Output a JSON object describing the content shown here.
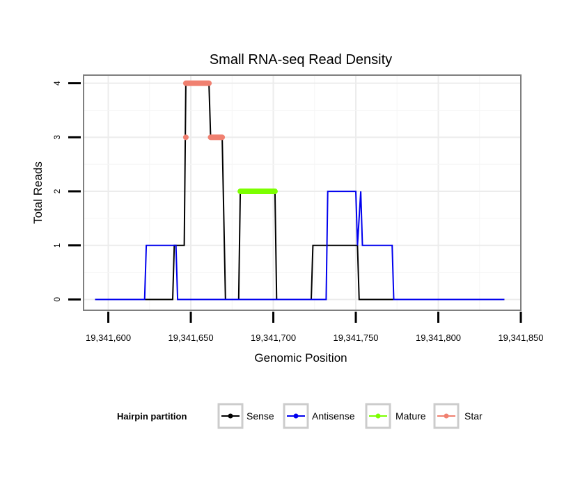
{
  "chart_data": {
    "type": "line",
    "title": "Small RNA-seq Read Density",
    "xlabel": "Genomic Position",
    "ylabel": "Total Reads",
    "xlim": [
      19341585,
      19341850
    ],
    "ylim": [
      -0.2,
      4.15
    ],
    "x_ticks": [
      19341600,
      19341650,
      19341700,
      19341750,
      19341800,
      19341850
    ],
    "x_tick_labels": [
      "19,341,600",
      "19,341,650",
      "19,341,700",
      "19,341,750",
      "19,341,800",
      "19,341,850"
    ],
    "y_ticks": [
      0,
      1,
      2,
      3,
      4
    ],
    "y_tick_labels": [
      "0",
      "1",
      "2",
      "3",
      "4"
    ],
    "grid": true,
    "legend": {
      "title": "Hairpin partition",
      "position": "bottom",
      "entries": [
        "Sense",
        "Antisense",
        "Mature",
        "Star"
      ]
    },
    "series": [
      {
        "name": "Sense",
        "color": "#000000",
        "style": "line",
        "points": [
          [
            19341592,
            0
          ],
          [
            19341639,
            0
          ],
          [
            19341640,
            1
          ],
          [
            19341646,
            1
          ],
          [
            19341647,
            4
          ],
          [
            19341661,
            4
          ],
          [
            19341662,
            3
          ],
          [
            19341669,
            3
          ],
          [
            19341671,
            0
          ],
          [
            19341679,
            0
          ],
          [
            19341680,
            2
          ],
          [
            19341701,
            2
          ],
          [
            19341702,
            0
          ],
          [
            19341723,
            0
          ],
          [
            19341724,
            1
          ],
          [
            19341751,
            1
          ],
          [
            19341752,
            0
          ],
          [
            19341840,
            0
          ]
        ]
      },
      {
        "name": "Antisense",
        "color": "#0000ee",
        "style": "line",
        "points": [
          [
            19341592,
            0
          ],
          [
            19341622,
            0
          ],
          [
            19341623,
            1
          ],
          [
            19341641,
            1
          ],
          [
            19341642,
            0
          ],
          [
            19341732,
            0
          ],
          [
            19341733,
            2
          ],
          [
            19341750,
            2
          ],
          [
            19341751,
            1
          ],
          [
            19341753,
            2
          ],
          [
            19341754,
            1
          ],
          [
            19341772,
            1
          ],
          [
            19341773,
            0
          ],
          [
            19341840,
            0
          ]
        ]
      },
      {
        "name": "Mature",
        "color": "#7cff00",
        "style": "segment",
        "segments": [
          [
            19341680,
            19341701,
            2
          ]
        ]
      },
      {
        "name": "Star",
        "color": "#f08070",
        "style": "segment",
        "segments": [
          [
            19341647,
            19341647,
            3
          ],
          [
            19341647,
            19341661,
            4
          ],
          [
            19341662,
            19341669,
            3
          ]
        ]
      }
    ]
  }
}
